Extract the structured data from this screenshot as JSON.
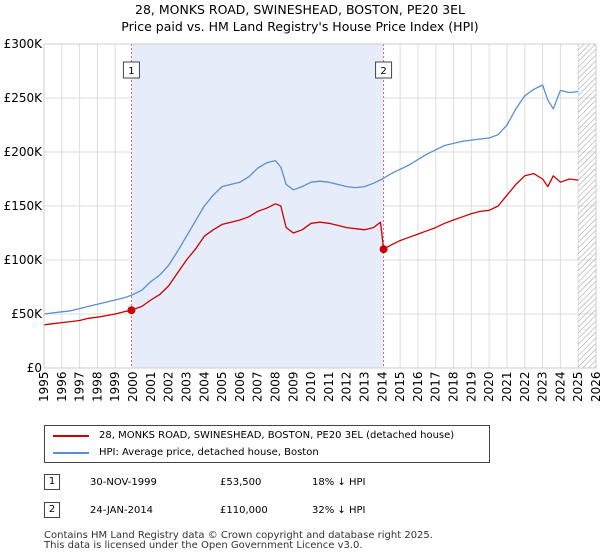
{
  "title_line1": "28, MONKS ROAD, SWINESHEAD, BOSTON, PE20 3EL",
  "title_line2": "Price paid vs. HM Land Registry's House Price Index (HPI)",
  "chart_data": {
    "type": "line",
    "title": "28, MONKS ROAD, SWINESHEAD, BOSTON, PE20 3EL — Price paid vs. HM Land Registry's House Price Index (HPI)",
    "xlabel": "",
    "ylabel": "",
    "xlim": [
      1995,
      2026
    ],
    "ylim": [
      0,
      300000
    ],
    "y_ticks": [
      {
        "value": 0,
        "label": "£0"
      },
      {
        "value": 50000,
        "label": "£50K"
      },
      {
        "value": 100000,
        "label": "£100K"
      },
      {
        "value": 150000,
        "label": "£150K"
      },
      {
        "value": 200000,
        "label": "£200K"
      },
      {
        "value": 250000,
        "label": "£250K"
      },
      {
        "value": 300000,
        "label": "£300K"
      }
    ],
    "x_ticks": [
      "1995",
      "1996",
      "1997",
      "1998",
      "1999",
      "2000",
      "2001",
      "2002",
      "2003",
      "2004",
      "2005",
      "2006",
      "2007",
      "2008",
      "2009",
      "2010",
      "2011",
      "2012",
      "2013",
      "2014",
      "2015",
      "2016",
      "2017",
      "2018",
      "2019",
      "2020",
      "2021",
      "2022",
      "2023",
      "2024",
      "2025",
      "2026"
    ],
    "shaded_region": {
      "from": 1999.91,
      "to": 2014.07
    },
    "hatched_region": {
      "from": 2025.0,
      "to": 2026.0
    },
    "series": [
      {
        "name": "28, MONKS ROAD, SWINESHEAD, BOSTON, PE20 3EL (detached house)",
        "color": "#cc0000",
        "x": [
          1995.0,
          1995.5,
          1996.0,
          1996.5,
          1997.0,
          1997.5,
          1998.0,
          1998.5,
          1999.0,
          1999.5,
          1999.91,
          2000.5,
          2001.0,
          2001.5,
          2002.0,
          2002.5,
          2003.0,
          2003.5,
          2004.0,
          2004.5,
          2005.0,
          2005.5,
          2006.0,
          2006.5,
          2007.0,
          2007.5,
          2008.0,
          2008.3,
          2008.6,
          2009.0,
          2009.5,
          2010.0,
          2010.5,
          2011.0,
          2011.5,
          2012.0,
          2012.5,
          2013.0,
          2013.5,
          2013.9,
          2014.07,
          2014.5,
          2015.0,
          2015.5,
          2016.0,
          2016.5,
          2017.0,
          2017.5,
          2018.0,
          2018.5,
          2019.0,
          2019.5,
          2020.0,
          2020.5,
          2021.0,
          2021.5,
          2022.0,
          2022.5,
          2023.0,
          2023.3,
          2023.6,
          2024.0,
          2024.5,
          2025.0
        ],
        "values": [
          40000,
          41000,
          42000,
          43000,
          44000,
          46000,
          47000,
          48500,
          50000,
          52000,
          53500,
          57000,
          63000,
          68000,
          76000,
          88000,
          100000,
          110000,
          122000,
          128000,
          133000,
          135000,
          137000,
          140000,
          145000,
          148000,
          152000,
          150000,
          130000,
          125000,
          128000,
          134000,
          135000,
          134000,
          132000,
          130000,
          129000,
          128000,
          130000,
          135000,
          110000,
          114000,
          118000,
          121000,
          124000,
          127000,
          130000,
          134000,
          137000,
          140000,
          143000,
          145000,
          146000,
          150000,
          160000,
          170000,
          178000,
          180000,
          175000,
          168000,
          178000,
          172000,
          175000,
          174000
        ]
      },
      {
        "name": "HPI: Average price, detached house, Boston",
        "color": "#5a8fd0",
        "x": [
          1995.0,
          1995.5,
          1996.0,
          1996.5,
          1997.0,
          1997.5,
          1998.0,
          1998.5,
          1999.0,
          1999.5,
          2000.0,
          2000.5,
          2001.0,
          2001.5,
          2002.0,
          2002.5,
          2003.0,
          2003.5,
          2004.0,
          2004.5,
          2005.0,
          2005.5,
          2006.0,
          2006.5,
          2007.0,
          2007.5,
          2008.0,
          2008.3,
          2008.6,
          2009.0,
          2009.5,
          2010.0,
          2010.5,
          2011.0,
          2011.5,
          2012.0,
          2012.5,
          2013.0,
          2013.5,
          2014.0,
          2014.5,
          2015.0,
          2015.5,
          2016.0,
          2016.5,
          2017.0,
          2017.5,
          2018.0,
          2018.5,
          2019.0,
          2019.5,
          2020.0,
          2020.5,
          2021.0,
          2021.5,
          2022.0,
          2022.5,
          2023.0,
          2023.3,
          2023.6,
          2024.0,
          2024.5,
          2025.0
        ],
        "values": [
          50000,
          51000,
          52000,
          53000,
          55000,
          57000,
          59000,
          61000,
          63000,
          65000,
          68000,
          72000,
          80000,
          86000,
          95000,
          108000,
          122000,
          136000,
          150000,
          160000,
          168000,
          170000,
          172000,
          177000,
          185000,
          190000,
          192000,
          186000,
          170000,
          165000,
          168000,
          172000,
          173000,
          172000,
          170000,
          168000,
          167000,
          168000,
          171000,
          175000,
          180000,
          184000,
          188000,
          193000,
          198000,
          202000,
          206000,
          208000,
          210000,
          211000,
          212000,
          213000,
          216000,
          225000,
          240000,
          252000,
          258000,
          262000,
          248000,
          240000,
          257000,
          255000,
          256000
        ]
      }
    ],
    "sales": [
      {
        "label": "1",
        "x": 1999.91,
        "value": 53500
      },
      {
        "label": "2",
        "x": 2014.07,
        "value": 110000
      }
    ]
  },
  "legend": {
    "property_label": "28, MONKS ROAD, SWINESHEAD, BOSTON, PE20 3EL (detached house)",
    "hpi_label": "HPI: Average price, detached house, Boston",
    "property_color": "#cc0000",
    "hpi_color": "#5a8fd0"
  },
  "transactions": [
    {
      "num": "1",
      "date": "30-NOV-1999",
      "price": "£53,500",
      "hpi": "18% ↓ HPI"
    },
    {
      "num": "2",
      "date": "24-JAN-2014",
      "price": "£110,000",
      "hpi": "32% ↓ HPI"
    }
  ],
  "footer_line1": "Contains HM Land Registry data © Crown copyright and database right 2025.",
  "footer_line2": "This data is licensed under the Open Government Licence v3.0."
}
